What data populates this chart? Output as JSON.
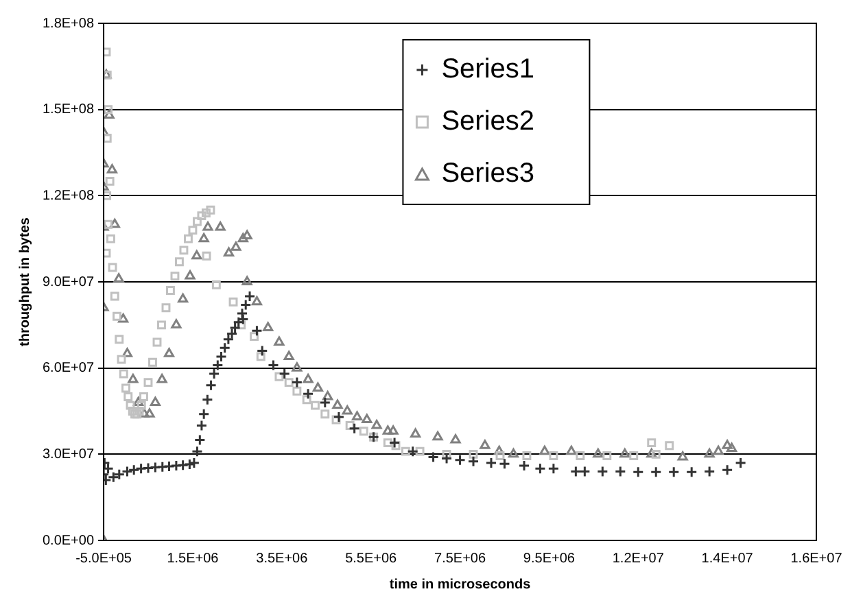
{
  "chart_data": {
    "type": "scatter",
    "xlabel": "time in microseconds",
    "ylabel": "throughput in bytes",
    "xlim": [
      -500000,
      15500000
    ],
    "xticks": [
      {
        "value": -500000,
        "label": "-5.0E+05"
      },
      {
        "value": 1500000,
        "label": "1.5E+06"
      },
      {
        "value": 3500000,
        "label": "3.5E+06"
      },
      {
        "value": 5500000,
        "label": "5.5E+06"
      },
      {
        "value": 7500000,
        "label": "7.5E+06"
      },
      {
        "value": 9500000,
        "label": "9.5E+06"
      },
      {
        "value": 11500000,
        "label": "1.2E+07"
      },
      {
        "value": 13500000,
        "label": "1.4E+07"
      },
      {
        "value": 15500000,
        "label": "1.6E+07"
      }
    ],
    "ylim": [
      0,
      180000000
    ],
    "yticks": [
      {
        "value": 0,
        "label": "0.0E+00"
      },
      {
        "value": 30000000,
        "label": "3.0E+07"
      },
      {
        "value": 60000000,
        "label": "6.0E+07"
      },
      {
        "value": 90000000,
        "label": "9.0E+07"
      },
      {
        "value": 120000000,
        "label": "1.2E+08"
      },
      {
        "value": 150000000,
        "label": "1.5E+08"
      },
      {
        "value": 180000000,
        "label": "1.8E+08"
      }
    ],
    "grid": "y",
    "legend": "top right",
    "series": [
      {
        "name": "Series1",
        "color": "#333333",
        "marker": "cross",
        "x": [
          -500000,
          -480000,
          -450000,
          -400000,
          -280000,
          -150000,
          30000,
          180000,
          340000,
          500000,
          660000,
          820000,
          970000,
          1130000,
          1280000,
          1430000,
          1530000,
          1600000,
          1660000,
          1700000,
          1750000,
          1830000,
          1910000,
          1980000,
          2060000,
          2140000,
          2220000,
          2300000,
          2380000,
          2450000,
          2530000,
          2610000,
          2690000,
          2780000,
          2630000,
          2940000,
          3060000,
          3310000,
          3560000,
          3840000,
          4090000,
          4470000,
          4780000,
          5130000,
          5560000,
          6030000,
          6440000,
          6900000,
          7200000,
          7500000,
          7800000,
          8200000,
          8500000,
          8940000,
          9300000,
          9600000,
          10100000,
          10300000,
          10700000,
          11100000,
          11500000,
          11900000,
          12300000,
          12700000,
          13100000,
          13500000,
          13800000
        ],
        "values": [
          23000000,
          27000000,
          21000000,
          25000000,
          22000000,
          23000000,
          24000000,
          24500000,
          25000000,
          25200000,
          25400000,
          25600000,
          25800000,
          26000000,
          26200000,
          26500000,
          27000000,
          31000000,
          35000000,
          40000000,
          44000000,
          49000000,
          54000000,
          58000000,
          61000000,
          64000000,
          67000000,
          70000000,
          72000000,
          74000000,
          76000000,
          79000000,
          82000000,
          85000000,
          77000000,
          73000000,
          66000000,
          61000000,
          58000000,
          55000000,
          51000000,
          48000000,
          43000000,
          39000000,
          36000000,
          34000000,
          31000000,
          29000000,
          28500000,
          28000000,
          27500000,
          27000000,
          26700000,
          26000000,
          25000000,
          25000000,
          24000000,
          24000000,
          24000000,
          24000000,
          23800000,
          23800000,
          23800000,
          23800000,
          24000000,
          24500000,
          27000000
        ]
      },
      {
        "name": "Series2",
        "color": "#c0c0c0",
        "marker": "square",
        "x": [
          -440000,
          -420000,
          -400000,
          -420000,
          -430000,
          -400000,
          -440000,
          -360000,
          -340000,
          -300000,
          -250000,
          -200000,
          -150000,
          -100000,
          -50000,
          0,
          50000,
          100000,
          150000,
          200000,
          250000,
          300000,
          350000,
          400000,
          500000,
          600000,
          700000,
          800000,
          900000,
          1000000,
          1100000,
          1200000,
          1300000,
          1400000,
          1500000,
          1600000,
          1700000,
          1800000,
          1900000,
          1810000,
          2030000,
          2410000,
          2590000,
          2880000,
          3030000,
          3440000,
          3660000,
          3840000,
          4060000,
          4250000,
          4470000,
          4720000,
          5030000,
          5340000,
          5560000,
          5880000,
          6060000,
          6280000,
          6600000,
          7200000,
          7800000,
          8400000,
          9000000,
          9600000,
          10200000,
          10800000,
          11400000,
          11800000,
          11900000,
          12200000
        ],
        "values": [
          170000000,
          162000000,
          150000000,
          140000000,
          120000000,
          110000000,
          100000000,
          125000000,
          105000000,
          95000000,
          85000000,
          78000000,
          70000000,
          63000000,
          58000000,
          53000000,
          50000000,
          47000000,
          45000000,
          44000000,
          44000000,
          45000000,
          47000000,
          50000000,
          55000000,
          62000000,
          69000000,
          75000000,
          81000000,
          87000000,
          92000000,
          97000000,
          101000000,
          105000000,
          108000000,
          111000000,
          113000000,
          114000000,
          115000000,
          99000000,
          89000000,
          83000000,
          75000000,
          71000000,
          64000000,
          57000000,
          55000000,
          52000000,
          49000000,
          47000000,
          44000000,
          42000000,
          40000000,
          38000000,
          36000000,
          34000000,
          33000000,
          31000000,
          31000000,
          30000000,
          30000000,
          29500000,
          29500000,
          29500000,
          29500000,
          29500000,
          29500000,
          34000000,
          30000000,
          33000000
        ]
      },
      {
        "name": "Series3",
        "color": "#808080",
        "marker": "triangle",
        "x": [
          -500000,
          -500000,
          -500000,
          -500000,
          -500000,
          -500000,
          -440000,
          -375000,
          -310000,
          -250000,
          -160000,
          -60000,
          30000,
          160000,
          280000,
          410000,
          530000,
          660000,
          810000,
          970000,
          1130000,
          1280000,
          1440000,
          1590000,
          1750000,
          1840000,
          2120000,
          2310000,
          2470000,
          2630000,
          2720000,
          2720000,
          2940000,
          3190000,
          3440000,
          3660000,
          3840000,
          4090000,
          4310000,
          4530000,
          4750000,
          4970000,
          5190000,
          5410000,
          5630000,
          5880000,
          6000000,
          6500000,
          7000000,
          7400000,
          8060000,
          8380000,
          8700000,
          9400000,
          10000000,
          10600000,
          11200000,
          11800000,
          12500000,
          13100000,
          13300000,
          13500000,
          13600000
        ],
        "values": [
          0,
          81000000,
          109000000,
          123000000,
          131000000,
          142000000,
          162000000,
          148000000,
          129000000,
          110000000,
          91000000,
          77000000,
          65000000,
          56000000,
          48000000,
          44000000,
          44000000,
          48000000,
          56000000,
          65000000,
          75000000,
          84000000,
          92000000,
          99000000,
          105000000,
          109000000,
          109000000,
          100000000,
          102000000,
          105000000,
          106000000,
          90000000,
          83000000,
          74000000,
          69000000,
          64000000,
          60000000,
          56000000,
          53000000,
          50000000,
          47000000,
          45000000,
          43000000,
          42000000,
          40000000,
          38000000,
          38000000,
          37000000,
          36000000,
          35000000,
          33000000,
          31000000,
          30000000,
          31000000,
          31000000,
          30000000,
          30000000,
          30000000,
          29000000,
          30000000,
          31000000,
          33000000,
          32000000
        ]
      }
    ]
  }
}
